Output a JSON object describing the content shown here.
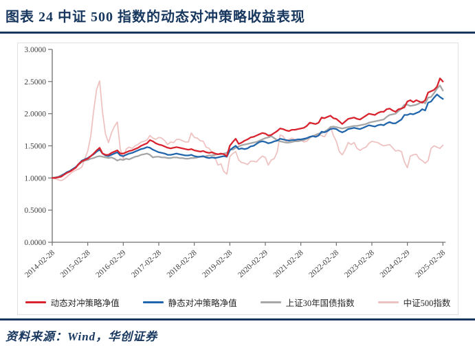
{
  "header": {
    "title": "图表 24  中证 500 指数的动态对冲策略收益表现"
  },
  "footer": {
    "source_label": "资料来源：Wind，华创证券"
  },
  "colors": {
    "accent_navy": "#17375E",
    "axis": "#6E6E6E",
    "tick_text": "#404040",
    "red": "#D9232E",
    "blue": "#2166AC",
    "gray": "#A6A6A6",
    "pink": "#EFC2C2"
  },
  "chart_data": {
    "type": "line",
    "frequency": "monthly",
    "x_start": "2014-02-28",
    "x_end": "2025-02-28",
    "n_points": 133,
    "x_tick_labels": [
      "2014-02-28",
      "2015-02-28",
      "2016-02-29",
      "2017-02-28",
      "2018-02-28",
      "2019-02-28",
      "2020-02-29",
      "2021-02-28",
      "2022-02-28",
      "2023-02-28",
      "2024-02-29",
      "2025-02-28"
    ],
    "y_tick_labels": [
      "0.0000",
      "0.5000",
      "1.0000",
      "1.5000",
      "2.0000",
      "2.5000",
      "3.0000"
    ],
    "ylim": [
      0,
      3
    ],
    "grid": false,
    "legend_position": "bottom",
    "series": [
      {
        "name": "动态对冲策略净值",
        "color": "#D9232E",
        "width": 2.3,
        "values": [
          1.0,
          1.0,
          1.01,
          1.02,
          1.05,
          1.08,
          1.1,
          1.13,
          1.16,
          1.22,
          1.26,
          1.28,
          1.3,
          1.34,
          1.38,
          1.43,
          1.47,
          1.38,
          1.36,
          1.36,
          1.39,
          1.41,
          1.43,
          1.38,
          1.38,
          1.4,
          1.42,
          1.43,
          1.45,
          1.47,
          1.5,
          1.52,
          1.54,
          1.59,
          1.57,
          1.54,
          1.52,
          1.51,
          1.49,
          1.47,
          1.46,
          1.47,
          1.48,
          1.47,
          1.46,
          1.45,
          1.44,
          1.45,
          1.43,
          1.42,
          1.41,
          1.42,
          1.4,
          1.39,
          1.4,
          1.38,
          1.37,
          1.38,
          1.37,
          1.34,
          1.5,
          1.56,
          1.61,
          1.53,
          1.55,
          1.58,
          1.6,
          1.63,
          1.64,
          1.66,
          1.68,
          1.7,
          1.69,
          1.66,
          1.67,
          1.7,
          1.73,
          1.77,
          1.76,
          1.74,
          1.73,
          1.75,
          1.75,
          1.76,
          1.77,
          1.78,
          1.81,
          1.86,
          1.85,
          1.84,
          1.86,
          1.94,
          1.93,
          1.95,
          1.97,
          1.93,
          1.92,
          1.88,
          1.84,
          1.88,
          1.92,
          1.93,
          1.94,
          1.92,
          1.91,
          1.94,
          1.97,
          2.0,
          1.99,
          1.98,
          2.01,
          2.03,
          2.03,
          2.07,
          2.08,
          2.05,
          2.03,
          2.07,
          2.08,
          2.1,
          2.19,
          2.21,
          2.18,
          2.21,
          2.19,
          2.17,
          2.21,
          2.33,
          2.35,
          2.37,
          2.42,
          2.55,
          2.5
        ]
      },
      {
        "name": "静态对冲策略净值",
        "color": "#2166AC",
        "width": 2.3,
        "values": [
          1.0,
          1.0,
          1.01,
          1.03,
          1.06,
          1.09,
          1.11,
          1.14,
          1.17,
          1.22,
          1.27,
          1.29,
          1.31,
          1.34,
          1.37,
          1.41,
          1.44,
          1.38,
          1.35,
          1.34,
          1.36,
          1.38,
          1.4,
          1.35,
          1.34,
          1.36,
          1.38,
          1.39,
          1.41,
          1.43,
          1.45,
          1.46,
          1.48,
          1.47,
          1.44,
          1.42,
          1.4,
          1.39,
          1.38,
          1.36,
          1.36,
          1.37,
          1.38,
          1.37,
          1.36,
          1.35,
          1.35,
          1.36,
          1.34,
          1.33,
          1.33,
          1.34,
          1.32,
          1.31,
          1.32,
          1.31,
          1.32,
          1.33,
          1.34,
          1.33,
          1.43,
          1.47,
          1.5,
          1.45,
          1.46,
          1.45,
          1.46,
          1.49,
          1.5,
          1.53,
          1.56,
          1.57,
          1.56,
          1.54,
          1.55,
          1.57,
          1.58,
          1.61,
          1.6,
          1.59,
          1.58,
          1.59,
          1.59,
          1.6,
          1.6,
          1.61,
          1.62,
          1.64,
          1.65,
          1.64,
          1.66,
          1.72,
          1.71,
          1.73,
          1.76,
          1.77,
          1.76,
          1.73,
          1.71,
          1.73,
          1.76,
          1.77,
          1.78,
          1.77,
          1.76,
          1.78,
          1.8,
          1.82,
          1.81,
          1.8,
          1.82,
          1.83,
          1.82,
          1.85,
          1.87,
          1.85,
          1.85,
          1.88,
          1.91,
          1.98,
          1.98,
          2.0,
          1.99,
          2.01,
          2.03,
          2.07,
          2.05,
          2.17,
          2.19,
          2.25,
          2.3,
          2.26,
          2.23
        ]
      },
      {
        "name": "上证30年国债指数",
        "color": "#A6A6A6",
        "width": 2.3,
        "values": [
          1.0,
          1.01,
          1.02,
          1.04,
          1.06,
          1.09,
          1.11,
          1.14,
          1.17,
          1.21,
          1.25,
          1.27,
          1.28,
          1.3,
          1.31,
          1.33,
          1.34,
          1.33,
          1.32,
          1.31,
          1.32,
          1.3,
          1.27,
          1.29,
          1.28,
          1.3,
          1.29,
          1.31,
          1.33,
          1.34,
          1.36,
          1.37,
          1.38,
          1.36,
          1.32,
          1.33,
          1.33,
          1.32,
          1.32,
          1.31,
          1.31,
          1.32,
          1.32,
          1.31,
          1.31,
          1.3,
          1.3,
          1.31,
          1.31,
          1.32,
          1.33,
          1.33,
          1.34,
          1.35,
          1.35,
          1.36,
          1.37,
          1.37,
          1.38,
          1.39,
          1.45,
          1.44,
          1.47,
          1.49,
          1.51,
          1.52,
          1.53,
          1.54,
          1.55,
          1.56,
          1.58,
          1.6,
          1.62,
          1.63,
          1.65,
          1.62,
          1.59,
          1.57,
          1.56,
          1.55,
          1.55,
          1.56,
          1.57,
          1.57,
          1.58,
          1.59,
          1.61,
          1.63,
          1.65,
          1.67,
          1.69,
          1.7,
          1.72,
          1.75,
          1.79,
          1.8,
          1.79,
          1.78,
          1.77,
          1.78,
          1.79,
          1.8,
          1.81,
          1.81,
          1.82,
          1.83,
          1.84,
          1.86,
          1.87,
          1.88,
          1.89,
          1.9,
          1.91,
          1.95,
          1.98,
          1.99,
          2.0,
          2.04,
          2.08,
          2.14,
          2.14,
          2.12,
          2.13,
          2.14,
          2.16,
          2.19,
          2.16,
          2.25,
          2.26,
          2.32,
          2.39,
          2.44,
          2.36
        ]
      },
      {
        "name": "中证500指数",
        "color": "#EFC2C2",
        "width": 1.8,
        "values": [
          1.0,
          0.99,
          0.97,
          0.96,
          0.98,
          1.02,
          1.06,
          1.1,
          1.12,
          1.14,
          1.17,
          1.3,
          1.42,
          1.65,
          2.05,
          2.38,
          2.51,
          2.02,
          1.68,
          1.55,
          1.7,
          1.8,
          1.87,
          1.45,
          1.3,
          1.45,
          1.48,
          1.46,
          1.5,
          1.52,
          1.56,
          1.57,
          1.59,
          1.66,
          1.62,
          1.6,
          1.63,
          1.62,
          1.58,
          1.52,
          1.56,
          1.55,
          1.6,
          1.6,
          1.58,
          1.56,
          1.56,
          1.7,
          1.63,
          1.62,
          1.58,
          1.57,
          1.48,
          1.46,
          1.4,
          1.32,
          1.2,
          1.22,
          1.1,
          1.06,
          1.33,
          1.38,
          1.41,
          1.28,
          1.24,
          1.23,
          1.21,
          1.26,
          1.26,
          1.25,
          1.3,
          1.34,
          1.32,
          1.2,
          1.28,
          1.3,
          1.4,
          1.67,
          1.65,
          1.57,
          1.6,
          1.62,
          1.6,
          1.58,
          1.6,
          1.56,
          1.57,
          1.62,
          1.66,
          1.65,
          1.68,
          1.66,
          1.64,
          1.72,
          1.8,
          1.66,
          1.57,
          1.41,
          1.36,
          1.44,
          1.55,
          1.52,
          1.55,
          1.46,
          1.43,
          1.46,
          1.48,
          1.54,
          1.57,
          1.56,
          1.55,
          1.52,
          1.5,
          1.51,
          1.52,
          1.47,
          1.42,
          1.43,
          1.41,
          1.25,
          1.16,
          1.34,
          1.36,
          1.37,
          1.3,
          1.27,
          1.23,
          1.27,
          1.46,
          1.5,
          1.48,
          1.46,
          1.51
        ]
      }
    ]
  }
}
